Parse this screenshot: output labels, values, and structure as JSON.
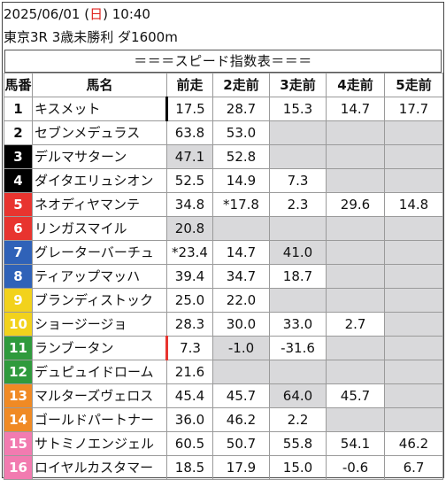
{
  "header": {
    "date": "2025/06/01",
    "day_open": " (",
    "day": "日",
    "day_close": ")",
    "time": "10:40",
    "race": "東京3R 3歳未勝利 ダ1600m"
  },
  "banner": "＝＝＝スピード指数表＝＝＝",
  "columns": [
    "馬番",
    "馬名",
    "前走",
    "2走前",
    "3走前",
    "4走前",
    "5走前"
  ],
  "horses": [
    {
      "no": "1",
      "name": "キスメット",
      "runs": [
        "17.5",
        "28.7",
        "15.3",
        "14.7",
        "17.7"
      ]
    },
    {
      "no": "2",
      "name": "セブンメデュラス",
      "runs": [
        "63.8",
        "53.0",
        "",
        "",
        ""
      ]
    },
    {
      "no": "3",
      "name": "デルマサターン",
      "runs": [
        "47.1",
        "52.8",
        "",
        "",
        ""
      ]
    },
    {
      "no": "4",
      "name": "ダイタエリュシオン",
      "runs": [
        "52.5",
        "14.9",
        "7.3",
        "",
        ""
      ]
    },
    {
      "no": "5",
      "name": "ネオディヤマンテ",
      "runs": [
        "34.8",
        "*17.8",
        "2.3",
        "29.6",
        "14.8"
      ]
    },
    {
      "no": "6",
      "name": "リンガスマイル",
      "runs": [
        "20.8",
        "",
        "",
        "",
        ""
      ]
    },
    {
      "no": "7",
      "name": "グレーターバーチュ",
      "runs": [
        "*23.4",
        "14.7",
        "41.0",
        "",
        ""
      ]
    },
    {
      "no": "8",
      "name": "ティアップマッハ",
      "runs": [
        "39.4",
        "34.7",
        "18.7",
        "",
        ""
      ]
    },
    {
      "no": "9",
      "name": "ブランディストック",
      "runs": [
        "25.0",
        "22.0",
        "",
        "",
        ""
      ]
    },
    {
      "no": "10",
      "name": "ショージージョ",
      "runs": [
        "28.3",
        "30.0",
        "33.0",
        "2.7",
        ""
      ]
    },
    {
      "no": "11",
      "name": "ランブータン",
      "runs": [
        "7.3",
        "-1.0",
        "-31.6",
        "",
        ""
      ]
    },
    {
      "no": "12",
      "name": "デュピュイドローム",
      "runs": [
        "21.6",
        "",
        "",
        "",
        ""
      ]
    },
    {
      "no": "13",
      "name": "マルターズヴェロス",
      "runs": [
        "45.4",
        "45.7",
        "64.0",
        "45.7",
        ""
      ]
    },
    {
      "no": "14",
      "name": "ゴールドパートナー",
      "runs": [
        "36.0",
        "46.2",
        "2.2",
        "",
        ""
      ]
    },
    {
      "no": "15",
      "name": "サトミノエンジェル",
      "runs": [
        "60.5",
        "50.7",
        "55.8",
        "54.1",
        "46.2"
      ]
    },
    {
      "no": "16",
      "name": "ロイヤルカスタマー",
      "runs": [
        "18.5",
        "17.9",
        "15.0",
        "-0.6",
        "6.7"
      ]
    }
  ],
  "gray_cells": [
    [],
    [
      2,
      3,
      4
    ],
    [
      0,
      2,
      3,
      4
    ],
    [
      3,
      4
    ],
    [],
    [
      0,
      1,
      2,
      3,
      4
    ],
    [
      2,
      3,
      4
    ],
    [
      3,
      4
    ],
    [
      2,
      3,
      4
    ],
    [
      4
    ],
    [
      1,
      3,
      4
    ],
    [
      1,
      2,
      3,
      4
    ],
    [
      2,
      4
    ],
    [
      3,
      4
    ],
    [],
    []
  ],
  "colors": {
    "frame_1": "#ffffff",
    "frame_2": "#000000",
    "frame_3": "#e8342f",
    "frame_4": "#2f62b8",
    "frame_5": "#f2d21c",
    "frame_6": "#2f9a3d",
    "frame_7": "#f08a24",
    "frame_8": "#f27bb0",
    "gray_cell": "#d9d9db",
    "day_red": "#e0211e",
    "marker_black": "#000000",
    "marker_red": "#e8342f"
  },
  "marks": [
    {
      "row": 0,
      "color": "marker_black"
    },
    {
      "row": 10,
      "color": "marker_red"
    }
  ]
}
